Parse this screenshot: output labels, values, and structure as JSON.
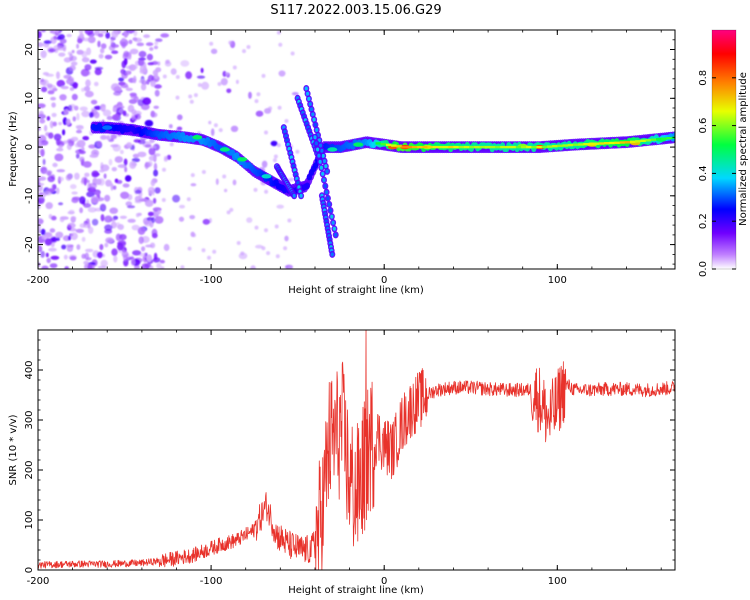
{
  "figure": {
    "title": "S117.2022.003.15.06.G29"
  },
  "chart_data": [
    {
      "type": "heatmap",
      "xlabel": "Height of straight line (km)",
      "ylabel": "Frequency (Hz)",
      "xlim": [
        -200,
        168
      ],
      "ylim": [
        -25,
        24
      ],
      "xticks": [
        -200,
        -100,
        0,
        100
      ],
      "yticks": [
        -20,
        -10,
        0,
        10,
        20
      ],
      "colorbar": {
        "label": "Normalized spectral amplitude",
        "range": [
          0,
          1
        ],
        "ticks": [
          0.0,
          0.2,
          0.4,
          0.6,
          0.8
        ],
        "colormap": [
          "#f0e0ff",
          "#9b30ff",
          "#0000ff",
          "#00e0ff",
          "#00ff40",
          "#ffff00",
          "#ff8000",
          "#ff0000",
          "#ff00a0"
        ]
      },
      "ridge": [
        {
          "x": -168,
          "y": 4,
          "v": 0.35
        },
        {
          "x": -160,
          "y": 4,
          "v": 0.35
        },
        {
          "x": -145,
          "y": 3.5,
          "v": 0.3
        },
        {
          "x": -130,
          "y": 2.5,
          "v": 0.4
        },
        {
          "x": -115,
          "y": 2,
          "v": 0.45
        },
        {
          "x": -105,
          "y": 1.5,
          "v": 0.45
        },
        {
          "x": -95,
          "y": 0,
          "v": 0.4
        },
        {
          "x": -85,
          "y": -2,
          "v": 0.45
        },
        {
          "x": -75,
          "y": -5,
          "v": 0.4
        },
        {
          "x": -65,
          "y": -7,
          "v": 0.35
        },
        {
          "x": -55,
          "y": -9,
          "v": 0.3
        },
        {
          "x": -45,
          "y": -8,
          "v": 0.3
        },
        {
          "x": -35,
          "y": 0,
          "v": 0.35
        },
        {
          "x": -25,
          "y": 0,
          "v": 0.4
        },
        {
          "x": -10,
          "y": 1,
          "v": 0.45
        },
        {
          "x": 10,
          "y": 0,
          "v": 0.75
        },
        {
          "x": 30,
          "y": 0,
          "v": 0.65
        },
        {
          "x": 60,
          "y": 0,
          "v": 0.6
        },
        {
          "x": 90,
          "y": 0,
          "v": 0.6
        },
        {
          "x": 110,
          "y": 0.5,
          "v": 0.6
        },
        {
          "x": 140,
          "y": 1,
          "v": 0.7
        },
        {
          "x": 168,
          "y": 2,
          "v": 0.45
        }
      ]
    },
    {
      "type": "line",
      "xlabel": "Height of straight line (km)",
      "ylabel": "SNR (10 * v/v)",
      "xlim": [
        -200,
        168
      ],
      "ylim": [
        0,
        480
      ],
      "xticks": [
        -200,
        -100,
        0,
        100
      ],
      "yticks": [
        0,
        100,
        200,
        300,
        400
      ],
      "color": "#e8322b",
      "series": [
        {
          "x": [
            -200,
            -180,
            -160,
            -140,
            -125,
            -110,
            -95,
            -85,
            -75,
            -68,
            -62,
            -55,
            -48,
            -42,
            -36,
            -32,
            -28,
            -24,
            -20,
            -16,
            -12,
            -8,
            -4,
            0,
            5,
            10,
            15,
            20,
            25,
            30,
            40,
            50,
            60,
            70,
            80,
            85,
            90,
            95,
            100,
            103,
            106,
            110,
            120,
            130,
            140,
            150,
            160,
            168
          ],
          "y": [
            10,
            12,
            12,
            14,
            20,
            30,
            50,
            60,
            80,
            130,
            70,
            50,
            40,
            40,
            100,
            250,
            270,
            280,
            180,
            150,
            200,
            250,
            270,
            250,
            240,
            290,
            320,
            340,
            350,
            360,
            365,
            365,
            362,
            360,
            360,
            360,
            340,
            300,
            330,
            360,
            370,
            360,
            360,
            362,
            362,
            360,
            362,
            365
          ]
        }
      ]
    }
  ]
}
